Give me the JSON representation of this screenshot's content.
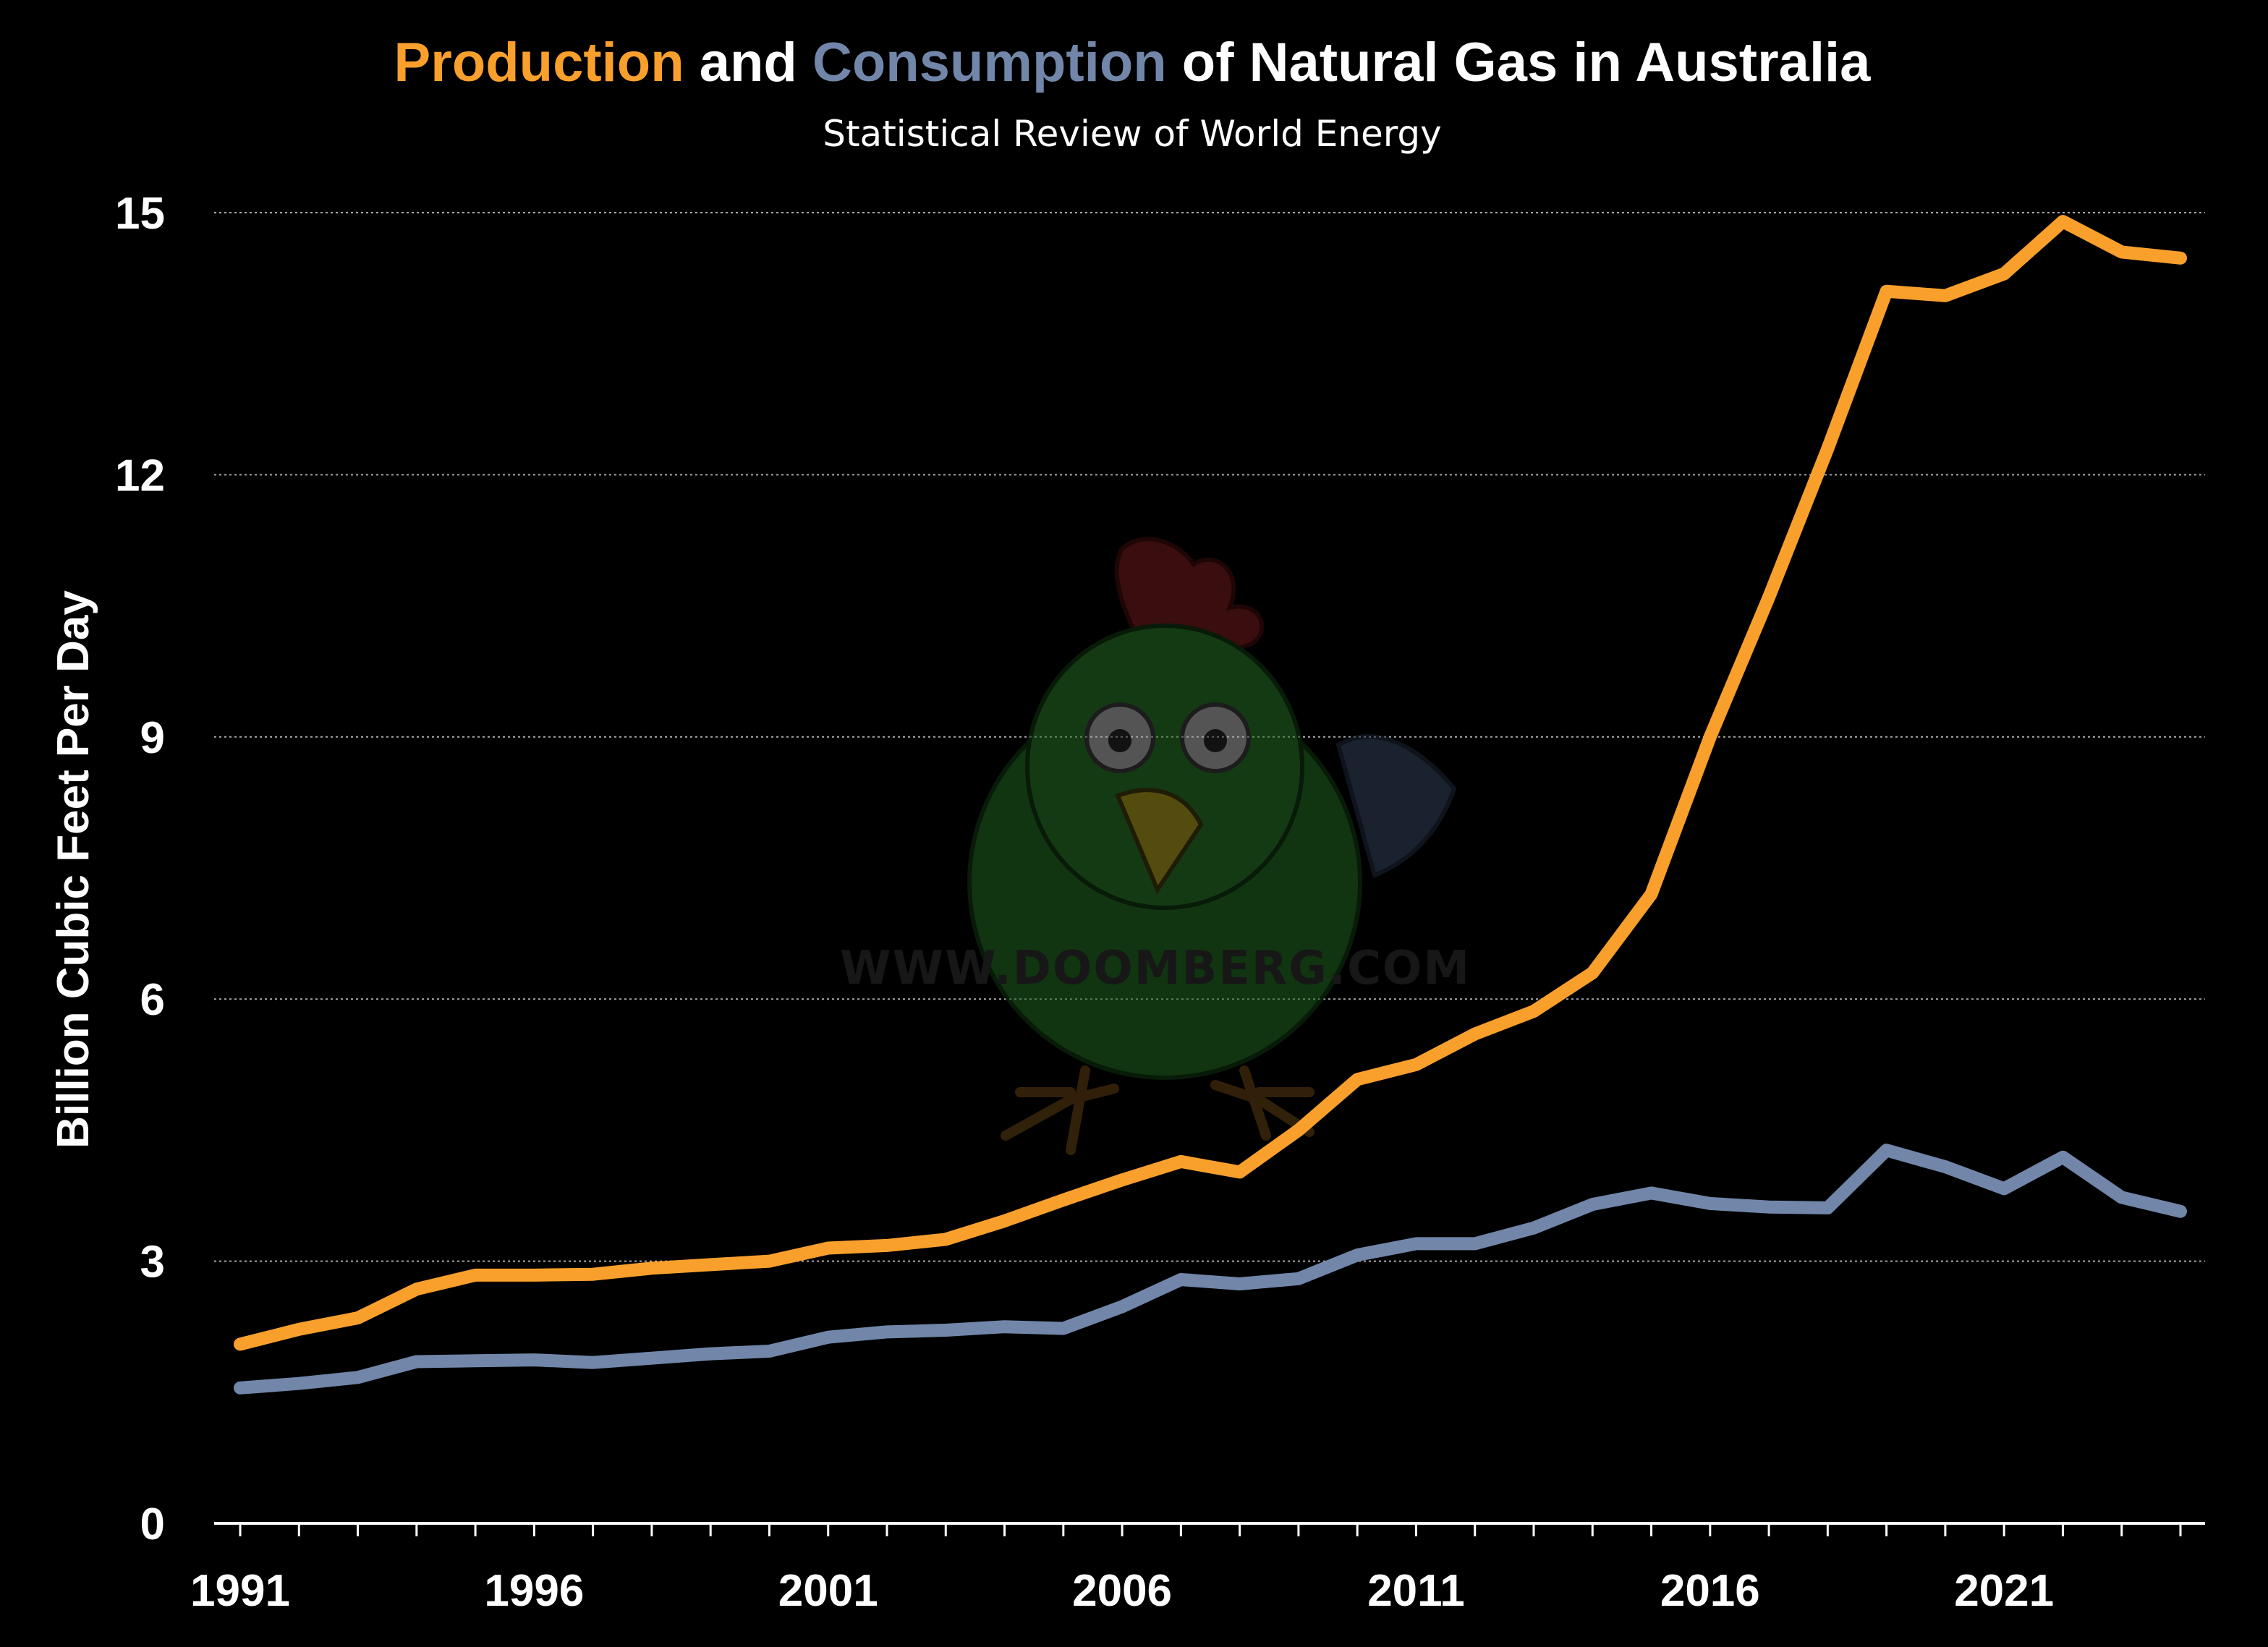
{
  "chart_data": {
    "type": "line",
    "title_parts": [
      {
        "text": "Production",
        "role": "production"
      },
      {
        "text": " and ",
        "role": "plain"
      },
      {
        "text": "Consumption",
        "role": "consumption"
      },
      {
        "text": " of Natural Gas in Australia",
        "role": "plain"
      }
    ],
    "subtitle": "Statistical Review of World Energy",
    "ylabel": "Billion Cubic Feet Per Day",
    "xlabel": "",
    "ylim": [
      0,
      15
    ],
    "yticks": [
      0,
      3,
      6,
      9,
      12,
      15
    ],
    "xlim": [
      1991,
      2024
    ],
    "xticks": [
      1991,
      1996,
      2001,
      2006,
      2011,
      2016,
      2021
    ],
    "grid": "horizontal-dotted",
    "x": [
      1991,
      1992,
      1993,
      1994,
      1995,
      1996,
      1997,
      1998,
      1999,
      2000,
      2001,
      2002,
      2003,
      2004,
      2005,
      2006,
      2007,
      2008,
      2009,
      2010,
      2011,
      2012,
      2013,
      2014,
      2015,
      2016,
      2017,
      2018,
      2019,
      2020,
      2021,
      2022,
      2023,
      2024
    ],
    "series": [
      {
        "name": "Production",
        "color": "#F9A02C",
        "values": [
          2.05,
          2.22,
          2.35,
          2.68,
          2.84,
          2.84,
          2.85,
          2.92,
          2.96,
          3.0,
          3.15,
          3.18,
          3.25,
          3.46,
          3.7,
          3.93,
          4.14,
          4.02,
          4.5,
          5.08,
          5.25,
          5.6,
          5.86,
          6.3,
          7.2,
          9.0,
          10.6,
          12.3,
          14.1,
          14.05,
          14.3,
          14.9,
          14.55,
          14.48
        ]
      },
      {
        "name": "Consumption",
        "color": "#7186A9",
        "values": [
          1.55,
          1.6,
          1.67,
          1.85,
          1.86,
          1.87,
          1.84,
          1.89,
          1.94,
          1.97,
          2.13,
          2.19,
          2.21,
          2.25,
          2.23,
          2.48,
          2.79,
          2.74,
          2.8,
          3.07,
          3.2,
          3.2,
          3.38,
          3.65,
          3.78,
          3.66,
          3.62,
          3.61,
          4.27,
          4.08,
          3.83,
          4.19,
          3.73,
          3.57
        ]
      }
    ]
  },
  "watermark": {
    "text": "WWW.DOOMBERG.COM",
    "icon": "doomberg-chicken-logo"
  },
  "colors": {
    "background": "#000000",
    "text": "#ffffff",
    "grid": "#aaaaaa"
  }
}
